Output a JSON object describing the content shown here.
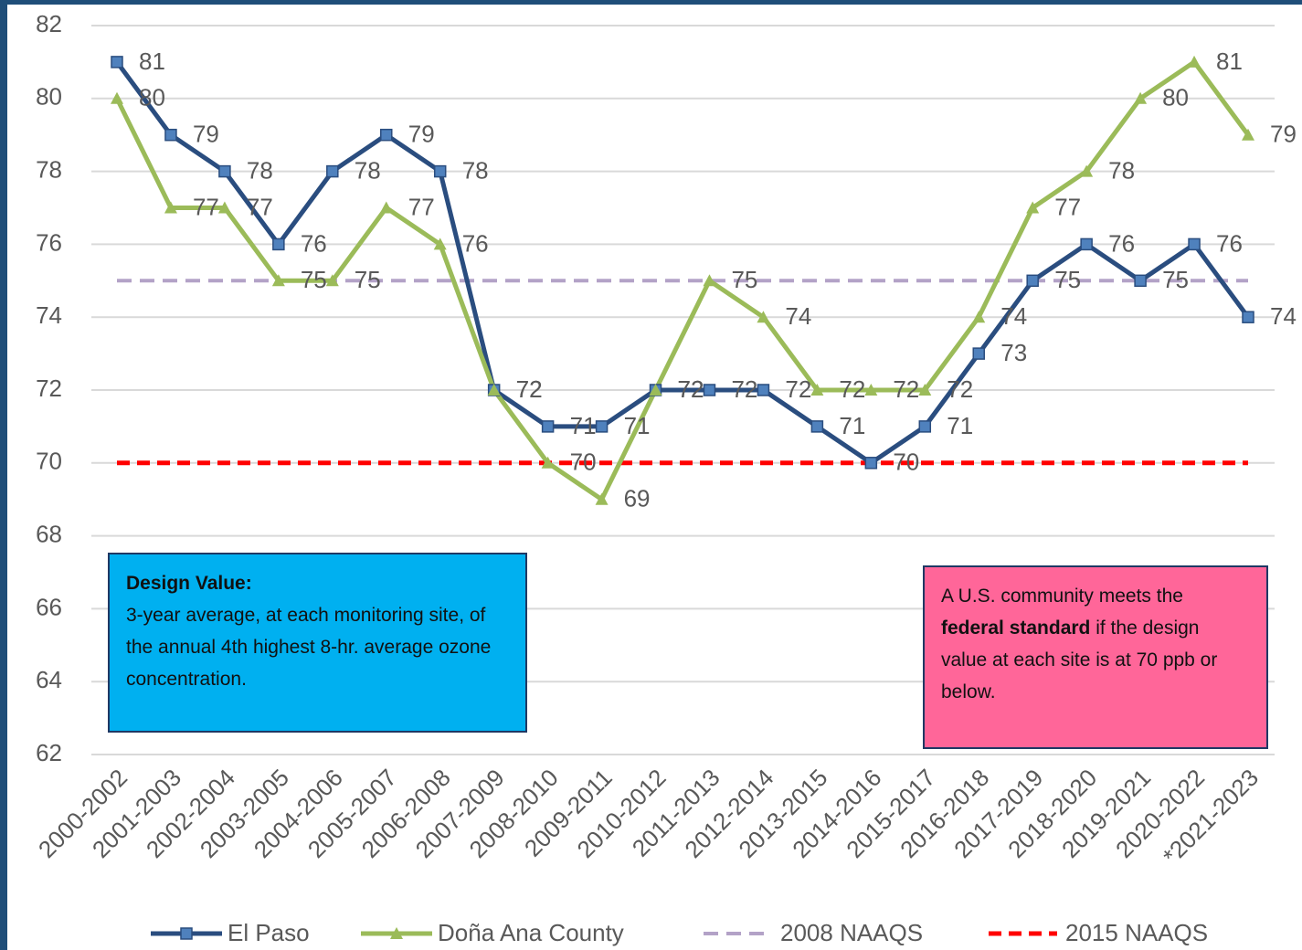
{
  "chart_data": {
    "type": "line",
    "categories": [
      "2000-2002",
      "2001-2003",
      "2002-2004",
      "2003-2005",
      "2004-2006",
      "2005-2007",
      "2006-2008",
      "2007-2009",
      "2008-2010",
      "2009-2011",
      "2010-2012",
      "2011-2013",
      "2012-2014",
      "2013-2015",
      "2014-2016",
      "2015-2017",
      "2016-2018",
      "2017-2019",
      "2018-2020",
      "2019-2021",
      "2020-2022",
      "*2021-2023"
    ],
    "series": [
      {
        "name": "El Paso",
        "color": "#2a4d7f",
        "marker": "square",
        "marker_color": "#4f81bd",
        "values": [
          81,
          79,
          78,
          76,
          78,
          79,
          78,
          72,
          71,
          71,
          72,
          72,
          72,
          71,
          70,
          71,
          73,
          75,
          76,
          75,
          76,
          74
        ]
      },
      {
        "name": "Doña Ana County",
        "color": "#9bbb59",
        "marker": "triangle",
        "marker_color": "#9bbb59",
        "values": [
          80,
          77,
          77,
          75,
          75,
          77,
          76,
          72,
          70,
          69,
          72,
          75,
          74,
          72,
          72,
          72,
          74,
          77,
          78,
          80,
          81,
          79
        ]
      }
    ],
    "reference_lines": [
      {
        "name": "2008 NAAQS",
        "value": 75,
        "color": "#b3a2c7"
      },
      {
        "name": "2015 NAAQS",
        "value": 70,
        "color": "#ff0000"
      }
    ],
    "ylim": [
      62,
      82
    ],
    "yticks": [
      62,
      64,
      66,
      68,
      70,
      72,
      74,
      76,
      78,
      80,
      82
    ],
    "grid": true,
    "annotations": [
      {
        "parts": [
          "Design Value:",
          "3-year average, at each monitoring site, of the annual 4th highest 8-hr. average ozone concentration."
        ],
        "color": "#00b0f0"
      },
      {
        "parts": [
          "A U.S. community meets the ",
          "federal standard",
          " if the design value at each site is at 70 ppb or below."
        ],
        "color": "#ff6699"
      }
    ]
  }
}
